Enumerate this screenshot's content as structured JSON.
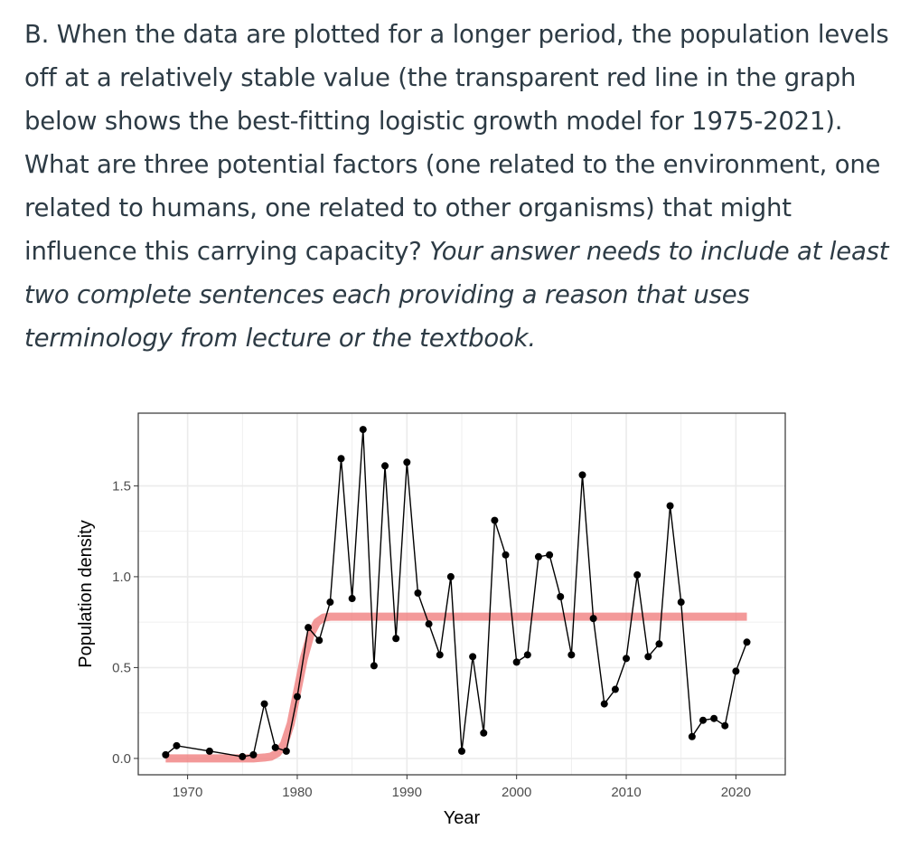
{
  "question": {
    "text": "B. When the data are plotted for a longer period, the population levels off at a relatively stable value (the transparent red line in the graph below shows the best-fitting logistic growth model for 1975-2021). What are three potential factors (one related to the environment, one related to humans, one related to other organisms) that might influence this carrying capacity? ",
    "emphasis": "Your answer needs to include at least two complete sentences each providing a reason that uses terminology from lecture or the textbook."
  },
  "chart_data": {
    "type": "line",
    "title": "",
    "xlabel": "Year",
    "ylabel": "Population density",
    "xlim": [
      1965.5,
      2024.5
    ],
    "ylim": [
      -0.09,
      1.9
    ],
    "xticks": [
      1970,
      1980,
      1990,
      2000,
      2010,
      2020
    ],
    "yticks": [
      0.0,
      0.5,
      1.0,
      1.5
    ],
    "ytick_labels": [
      "0.0",
      "0.5",
      "1.0",
      "1.5"
    ],
    "grid": true,
    "legend": "none",
    "colors": {
      "observed": "#000000",
      "model": "#f08080",
      "grid": "#ebebeb",
      "panel_border": "#333333"
    },
    "series": [
      {
        "role": "observed",
        "x": [
          1968,
          1969,
          1972,
          1975,
          1976,
          1977,
          1978,
          1979,
          1980,
          1981,
          1982,
          1983,
          1984,
          1985,
          1986,
          1987,
          1988,
          1989,
          1990,
          1991,
          1992,
          1993,
          1994,
          1995,
          1996,
          1997,
          1998,
          1999,
          2000,
          2001,
          2002,
          2003,
          2004,
          2005,
          2006,
          2007,
          2008,
          2009,
          2010,
          2011,
          2012,
          2013,
          2014,
          2015,
          2016,
          2017,
          2018,
          2019,
          2020,
          2021
        ],
        "y": [
          0.02,
          0.07,
          0.04,
          0.01,
          0.02,
          0.3,
          0.06,
          0.04,
          0.34,
          0.72,
          0.65,
          0.86,
          1.65,
          0.88,
          1.81,
          0.51,
          1.61,
          0.66,
          1.63,
          0.91,
          0.74,
          0.57,
          1.0,
          0.04,
          0.56,
          0.14,
          1.31,
          1.12,
          0.53,
          0.57,
          1.11,
          1.12,
          0.89,
          0.57,
          1.56,
          0.77,
          0.3,
          0.38,
          0.55,
          1.01,
          0.56,
          0.63,
          1.39,
          0.86,
          0.12,
          0.21,
          0.22,
          0.18,
          0.48,
          0.64
        ]
      },
      {
        "role": "model",
        "x": [
          1968,
          1970,
          1972,
          1974,
          1976,
          1977,
          1977.6,
          1978.2,
          1978.8,
          1979.4,
          1980,
          1980.6,
          1981.2,
          1981.8,
          1982.4,
          1983,
          1985,
          1990,
          2000,
          2010,
          2021
        ],
        "y": [
          0.0,
          0.0,
          0.0,
          0.0,
          0.0,
          0.005,
          0.01,
          0.03,
          0.08,
          0.19,
          0.37,
          0.55,
          0.68,
          0.75,
          0.775,
          0.78,
          0.78,
          0.78,
          0.78,
          0.78,
          0.78
        ]
      }
    ]
  }
}
